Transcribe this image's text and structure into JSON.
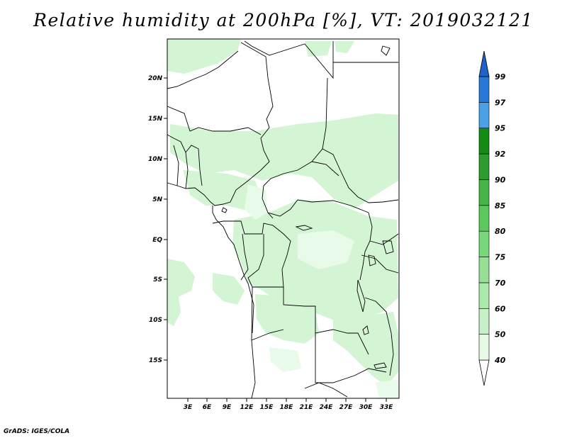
{
  "title": "Relative humidity at 200hPa [%], VT: 2019032121",
  "credit": "GrADS: IGES/COLA",
  "map": {
    "lat_ticks": [
      "20N",
      "15N",
      "10N",
      "5N",
      "EQ",
      "5S",
      "10S",
      "15S"
    ],
    "lon_ticks": [
      "3E",
      "6E",
      "9E",
      "12E",
      "15E",
      "18E",
      "21E",
      "24E",
      "27E",
      "30E",
      "33E"
    ]
  },
  "colorbar": {
    "levels": [
      "40",
      "50",
      "60",
      "70",
      "75",
      "80",
      "85",
      "90",
      "92",
      "95",
      "97",
      "99"
    ],
    "colors": [
      "#e6fae6",
      "#c8f0c8",
      "#aaeaaa",
      "#96e096",
      "#78d778",
      "#5ac85a",
      "#46b446",
      "#2d9b2d",
      "#148c14",
      "#4ba0e6",
      "#2878d7",
      "#1e64c8"
    ]
  }
}
